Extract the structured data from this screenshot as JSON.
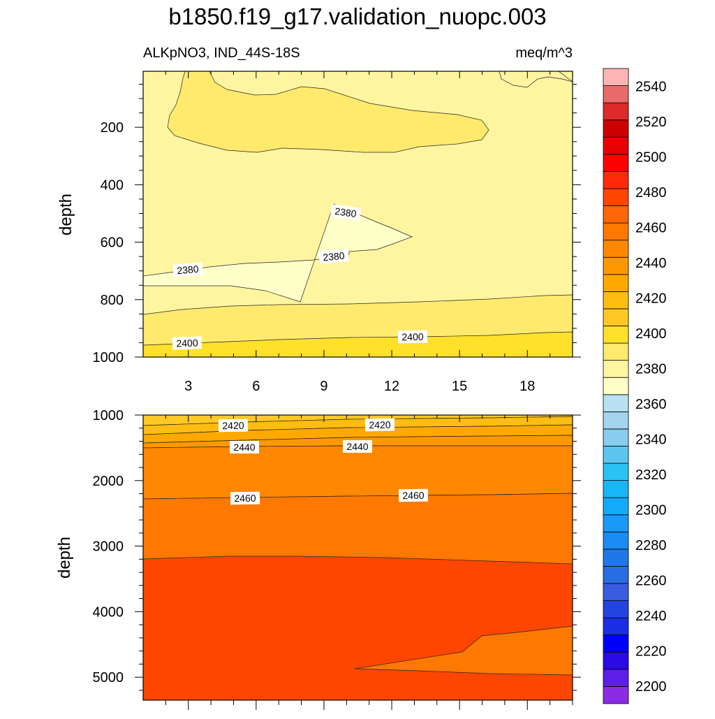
{
  "chart_data": {
    "type": "contour",
    "title": "b1850.f19_g17.validation_nuopc.003",
    "left_subtitle": "ALKpNO3, IND_44S-18S",
    "right_subtitle": "meq/m^3",
    "colorbar": {
      "levels": [
        2190,
        2200,
        2210,
        2220,
        2230,
        2240,
        2250,
        2260,
        2270,
        2280,
        2290,
        2300,
        2310,
        2320,
        2330,
        2340,
        2350,
        2360,
        2370,
        2380,
        2390,
        2400,
        2410,
        2420,
        2430,
        2440,
        2450,
        2460,
        2470,
        2480,
        2490,
        2500,
        2510,
        2520,
        2530,
        2540,
        2550
      ],
      "labels": [
        "2200",
        "2220",
        "2240",
        "2260",
        "2280",
        "2300",
        "2320",
        "2340",
        "2360",
        "2380",
        "2400",
        "2420",
        "2440",
        "2460",
        "2480",
        "2500",
        "2520",
        "2540"
      ],
      "colors": [
        "#8b2be6",
        "#5e1ee8",
        "#2a0ae6",
        "#0000f8",
        "#1a2ee6",
        "#2444e2",
        "#3a5ce0",
        "#2a6ce2",
        "#2078e6",
        "#1a8cf4",
        "#1a9af8",
        "#14aafa",
        "#1ab6f4",
        "#2ac2f4",
        "#5cc6f0",
        "#88ccee",
        "#a4d4ee",
        "#b8e0f0",
        "#ffffc8",
        "#fff5a0",
        "#ffea6e",
        "#ffe02a",
        "#ffc826",
        "#ffbc12",
        "#ffa800",
        "#ff9800",
        "#ff8800",
        "#ff7800",
        "#ff6608",
        "#ff4600",
        "#ff2a0a",
        "#ff0000",
        "#e80000",
        "#cc0000",
        "#dd2a2a",
        "#e86a6a",
        "#ffb4b4"
      ]
    },
    "top_panel": {
      "xlim": [
        1,
        20
      ],
      "ylim": [
        1000,
        5
      ],
      "x_ticks": [
        "3",
        "6",
        "9",
        "12",
        "15",
        "18"
      ],
      "y_ticks": [
        "200",
        "400",
        "600",
        "800",
        "1000"
      ],
      "ylabel": "depth",
      "contour_labels": [
        "2380",
        "2380",
        "2380",
        "2400",
        "2400"
      ]
    },
    "bottom_panel": {
      "xlim": [
        1,
        20
      ],
      "ylim": [
        5350,
        1000
      ],
      "y_ticks": [
        "1000",
        "2000",
        "3000",
        "4000",
        "5000"
      ],
      "ylabel": "depth",
      "contour_labels": [
        "2420",
        "2420",
        "2440",
        "2440",
        "2460",
        "2460"
      ]
    }
  }
}
